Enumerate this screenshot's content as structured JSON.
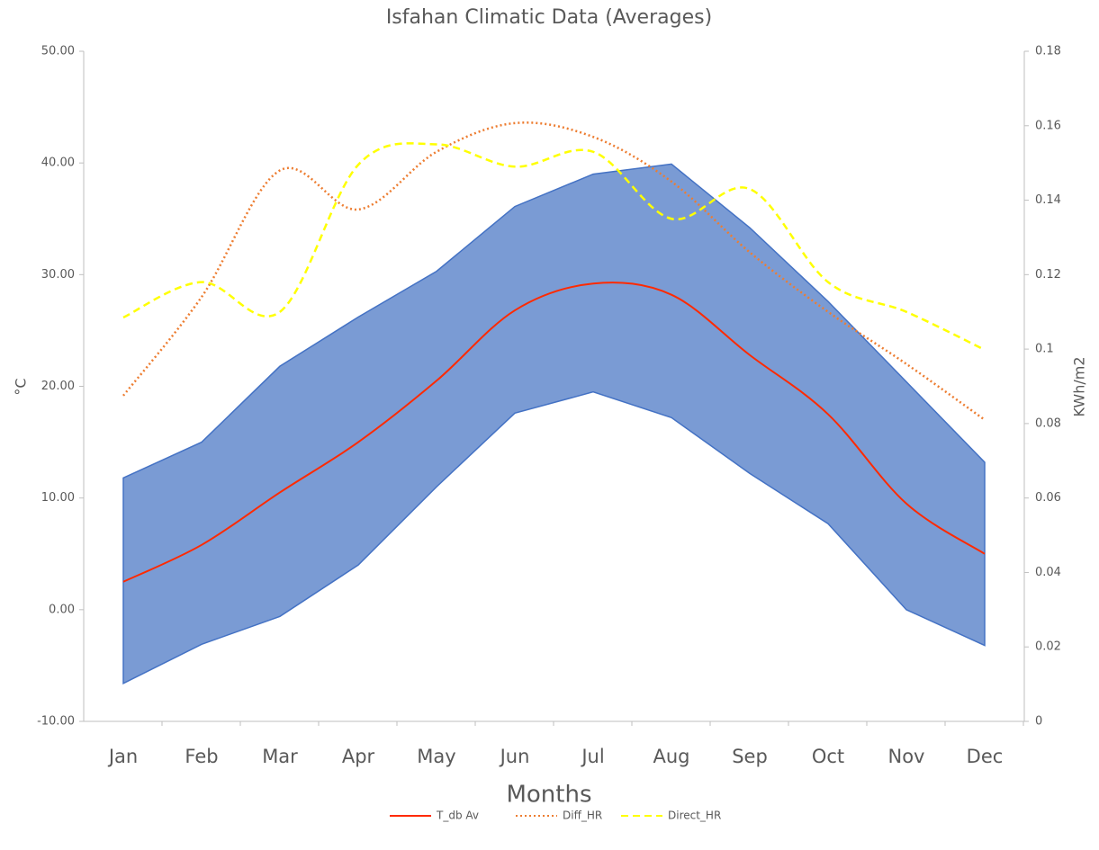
{
  "chart_data": {
    "type": "line",
    "title": "Isfahan Climatic Data (Averages)",
    "x_label": "Months",
    "y_label": "°C",
    "y2_label": "KWh/m2",
    "categories": [
      "Jan",
      "Feb",
      "Mar",
      "Apr",
      "May",
      "Jun",
      "Jul",
      "Aug",
      "Sep",
      "Oct",
      "Nov",
      "Dec"
    ],
    "band": {
      "color": "#7a9bd4",
      "edge_color": "#4472c4",
      "upper": [
        11.8,
        15.0,
        21.8,
        26.2,
        30.3,
        36.1,
        39.0,
        39.9,
        34.2,
        27.6,
        20.4,
        13.2
      ],
      "lower": [
        -6.6,
        -3.1,
        -0.6,
        4.0,
        11.0,
        17.6,
        19.5,
        17.2,
        12.2,
        7.7,
        0.0,
        -3.2
      ]
    },
    "series": [
      {
        "name": "T_db Av",
        "color": "#ff2a00",
        "style": "solid",
        "values": [
          2.5,
          5.8,
          10.5,
          15.0,
          20.5,
          26.8,
          29.2,
          28.2,
          22.8,
          17.5,
          9.5,
          5.0
        ]
      },
      {
        "name": "Diff_HR",
        "color": "#ed7d31",
        "style": "dotted",
        "axis": "y2",
        "values": [
          0.0875,
          0.114,
          0.148,
          0.1375,
          0.153,
          0.1607,
          0.157,
          0.145,
          0.126,
          0.11,
          0.096,
          0.081
        ]
      },
      {
        "name": "Direct_HR",
        "color": "#ffff00",
        "style": "dashed",
        "axis": "y2",
        "values": [
          0.1085,
          0.118,
          0.11,
          0.1495,
          0.155,
          0.149,
          0.153,
          0.135,
          0.143,
          0.118,
          0.11,
          0.0998
        ]
      }
    ],
    "ylim": [
      -10,
      50
    ],
    "yticks": [
      {
        "value": -10,
        "label": "-10.00"
      },
      {
        "value": 0,
        "label": "0.00"
      },
      {
        "value": 10,
        "label": "10.00"
      },
      {
        "value": 20,
        "label": "20.00"
      },
      {
        "value": 30,
        "label": "30.00"
      },
      {
        "value": 40,
        "label": "40.00"
      },
      {
        "value": 50,
        "label": "50.00"
      }
    ],
    "y2lim": [
      0,
      0.18
    ],
    "y2ticks": [
      0,
      0.02,
      0.04,
      0.06,
      0.08,
      0.1,
      0.12,
      0.14,
      0.16,
      0.18
    ],
    "legend": "bottom"
  }
}
